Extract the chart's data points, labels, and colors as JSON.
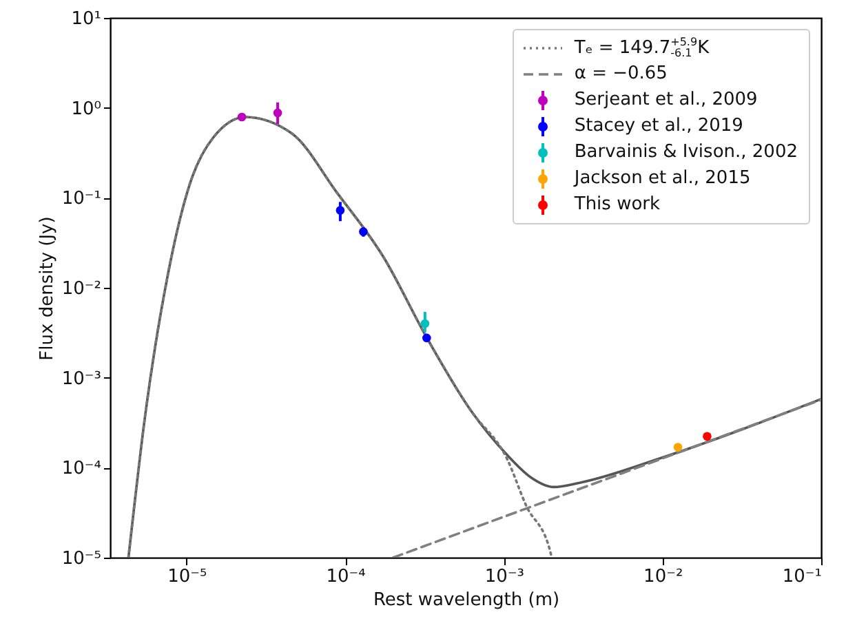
{
  "chart_data": {
    "type": "line",
    "xlabel": "Rest wavelength (m)",
    "ylabel": "Flux density (Jy)",
    "log": "xy",
    "xlim": [
      3.3e-06,
      0.1
    ],
    "ylim": [
      1e-05,
      10
    ],
    "xticks": [
      {
        "value": 1e-05,
        "label": "10⁻⁵"
      },
      {
        "value": 0.0001,
        "label": "10⁻⁴"
      },
      {
        "value": 0.001,
        "label": "10⁻³"
      },
      {
        "value": 0.01,
        "label": "10⁻²"
      },
      {
        "value": 0.1,
        "label": "10⁻¹"
      }
    ],
    "yticks": [
      {
        "value": 1e-05,
        "label": "10⁻⁵"
      },
      {
        "value": 0.0001,
        "label": "10⁻⁴"
      },
      {
        "value": 0.001,
        "label": "10⁻³"
      },
      {
        "value": 0.01,
        "label": "10⁻²"
      },
      {
        "value": 0.1,
        "label": "10⁻¹"
      },
      {
        "value": 1,
        "label": "10⁰"
      },
      {
        "value": 10,
        "label": "10¹"
      }
    ],
    "legend": "top right",
    "grid": false,
    "series": [
      {
        "line_style": "solid",
        "marker": "none",
        "color": "#555555",
        "x": [
          4.3e-06,
          5.5e-06,
          7.6e-06,
          1.05e-05,
          1.47e-05,
          2.35e-05,
          4.6e-05,
          8.9e-05,
          0.000174,
          0.000326,
          0.00062,
          0.00105,
          0.00148,
          0.00206,
          0.0031,
          0.01,
          0.1
        ],
        "values": [
          1e-05,
          0.0004,
          0.0137,
          0.144,
          0.466,
          0.79,
          0.52,
          0.113,
          0.022,
          0.0028,
          0.00043,
          0.000138,
          7.8e-05,
          6.1e-05,
          6.9e-05,
          0.00013,
          0.00058
        ]
      },
      {
        "name": "Tₑ = 149.7$^{+5.9}$$_{-6.1}$K",
        "line_style": "dotted",
        "marker": "none",
        "color": "#777777",
        "x": [
          4.3e-06,
          5.5e-06,
          7.6e-06,
          1.05e-05,
          1.47e-05,
          2.35e-05,
          4.6e-05,
          8.9e-05,
          0.000174,
          0.000326,
          0.00062,
          0.00105,
          0.00138,
          0.00196,
          0.002
        ],
        "values": [
          1e-05,
          0.0004,
          0.0137,
          0.144,
          0.466,
          0.79,
          0.52,
          0.113,
          0.022,
          0.0028,
          0.00043,
          0.000124,
          3.8e-05,
          1.17e-05,
          1e-05
        ]
      },
      {
        "name": "α = −0.65",
        "line_style": "dashed",
        "marker": "none",
        "color": "#808080",
        "x": [
          0.0002,
          0.001,
          0.01,
          0.1
        ],
        "values": [
          1e-05,
          2.85e-05,
          0.000127,
          0.00057
        ]
      },
      {
        "type": "scatter",
        "name": "Serjeant et al., 2009",
        "color": "#bf00bf",
        "x": [
          2.23e-05,
          3.75e-05
        ],
        "values": [
          0.79,
          0.88
        ],
        "errors": [
          null,
          [
            0.66,
            1.15
          ]
        ]
      },
      {
        "type": "scatter",
        "name": "Stacey et al., 2019",
        "color": "#0000ff",
        "x": [
          9.3e-05,
          0.00013,
          0.000326
        ],
        "values": [
          0.0726,
          0.042,
          0.00277
        ],
        "errors": [
          [
            0.055,
            0.09
          ],
          [
            0.037,
            0.047
          ],
          null
        ]
      },
      {
        "type": "scatter",
        "name": "Barvainis & Ivison., 2002",
        "color": "#00bfbf",
        "x": [
          0.000318
        ],
        "values": [
          0.004
        ],
        "errors": [
          [
            0.0032,
            0.0054
          ]
        ]
      },
      {
        "type": "scatter",
        "name": "Jackson et al., 2015",
        "color": "#ffa500",
        "x": [
          0.0125
        ],
        "values": [
          0.000169
        ]
      },
      {
        "type": "scatter",
        "name": "This work",
        "color": "#ff0000",
        "x": [
          0.0191
        ],
        "values": [
          0.000223
        ]
      }
    ],
    "marker": "circle"
  }
}
